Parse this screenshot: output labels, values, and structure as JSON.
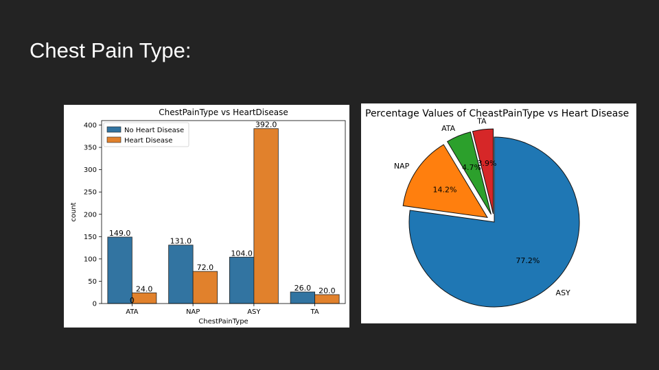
{
  "slide": {
    "title": "Chest Pain Type:"
  },
  "chart_data": [
    {
      "type": "bar",
      "title": "ChestPainType vs HeartDisease",
      "xlabel": "ChestPainType",
      "ylabel": "count",
      "ylim": [
        0,
        410
      ],
      "yticks": [
        0,
        50,
        100,
        150,
        200,
        250,
        300,
        350,
        400
      ],
      "categories": [
        "ATA",
        "NAP",
        "ASY",
        "TA"
      ],
      "series": [
        {
          "name": "No Heart Disease",
          "color": "#3274a1",
          "values": [
            149,
            131,
            104,
            26
          ],
          "labels": [
            "149.0",
            "131.0",
            "104.0",
            "26.0"
          ]
        },
        {
          "name": "Heart Disease",
          "color": "#e1812c",
          "values": [
            24,
            72,
            392,
            20
          ],
          "labels": [
            "24.0",
            "72.0",
            "392.0",
            "20.0"
          ]
        }
      ],
      "stray_label": "0",
      "legend": "upper-left",
      "grid": false
    },
    {
      "type": "pie",
      "title": "Percentage Values of CheastPainType vs Heart Disease",
      "slices": [
        {
          "label": "ASY",
          "value": 77.2,
          "pct": "77.2%",
          "color": "#1f77b4",
          "explode": false
        },
        {
          "label": "NAP",
          "value": 14.2,
          "pct": "14.2%",
          "color": "#ff7f0e",
          "explode": true
        },
        {
          "label": "ATA",
          "value": 4.7,
          "pct": "4.7%",
          "color": "#2ca02c",
          "explode": true
        },
        {
          "label": "TA",
          "value": 3.9,
          "pct": "3.9%",
          "color": "#d62728",
          "explode": true
        }
      ],
      "start_angle": 90,
      "direction": "clockwise"
    }
  ]
}
